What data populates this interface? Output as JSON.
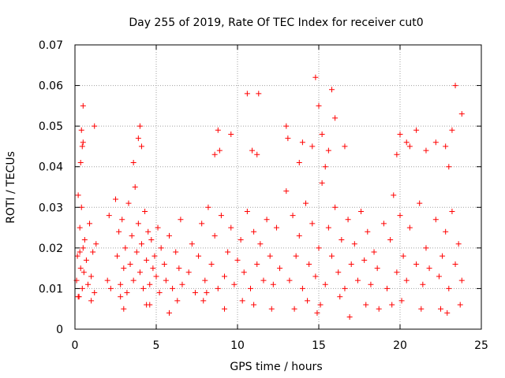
{
  "chart_data": {
    "type": "scatter",
    "title": "Day 255 of 2019, Rate Of TEC Index for receiver cut0",
    "xlabel": "GPS time / hours",
    "ylabel": "ROTI / TECUs",
    "xlim": [
      0,
      25
    ],
    "ylim": [
      0,
      0.07
    ],
    "x_ticks": [
      0,
      5,
      10,
      15,
      20,
      25
    ],
    "x_tick_labels": [
      "0",
      "5",
      "10",
      "15",
      "20",
      "25"
    ],
    "y_ticks": [
      0,
      0.01,
      0.02,
      0.03,
      0.04,
      0.05,
      0.06,
      0.07
    ],
    "y_tick_labels": [
      "0",
      "0.01",
      "0.02",
      "0.03",
      "0.04",
      "0.05",
      "0.06",
      "0.07"
    ],
    "grid": true,
    "marker": "plus",
    "color": "#ff0000",
    "series": [
      {
        "x": [
          0.1,
          0.15,
          0.2,
          0.25,
          0.3,
          0.35,
          0.4,
          0.45,
          0.5,
          0.55,
          0.6,
          0.7,
          0.8,
          0.9,
          1.0,
          1.1,
          1.2,
          1.3,
          2.0,
          2.1,
          2.2,
          2.5,
          2.6,
          2.7,
          2.8,
          2.9,
          3.0,
          3.1,
          3.2,
          3.3,
          3.4,
          3.5,
          3.6,
          3.7,
          3.8,
          3.9,
          4.0,
          4.1,
          4.2,
          4.3,
          4.4,
          4.5,
          4.6,
          4.7,
          4.8,
          4.9,
          5.0,
          5.1,
          5.2,
          5.3,
          5.5,
          5.6,
          5.8,
          6.0,
          6.2,
          6.4,
          6.5,
          6.6,
          7.0,
          7.2,
          7.4,
          7.6,
          7.8,
          8.0,
          8.2,
          8.4,
          8.6,
          8.8,
          9.0,
          9.2,
          9.4,
          9.6,
          9.8,
          10.0,
          10.2,
          10.4,
          10.6,
          10.8,
          11.0,
          11.2,
          11.4,
          11.6,
          11.8,
          12.0,
          12.2,
          12.4,
          12.6,
          13.0,
          13.2,
          13.4,
          13.6,
          13.8,
          14.0,
          14.2,
          14.4,
          14.6,
          14.8,
          15.0,
          15.2,
          15.4,
          15.6,
          15.8,
          16.0,
          16.2,
          16.4,
          16.6,
          16.8,
          17.0,
          17.2,
          17.4,
          17.6,
          17.8,
          18.0,
          18.2,
          18.4,
          18.6,
          19.0,
          19.2,
          19.4,
          19.6,
          19.8,
          20.0,
          20.2,
          20.4,
          20.6,
          21.0,
          21.2,
          21.4,
          21.6,
          21.8,
          22.2,
          22.4,
          22.6,
          22.8,
          23.0,
          23.2,
          23.4,
          23.6,
          23.8,
          0.3,
          0.4,
          0.5,
          0.35,
          0.45,
          1.2,
          3.6,
          3.9,
          4.0,
          4.1,
          8.6,
          8.8,
          8.9,
          9.6,
          10.6,
          10.9,
          11.2,
          11.3,
          13.0,
          13.1,
          13.8,
          14.0,
          14.6,
          14.8,
          15.0,
          15.2,
          15.4,
          15.6,
          15.8,
          16.0,
          16.6,
          19.8,
          20.0,
          20.4,
          20.6,
          21.0,
          21.6,
          22.2,
          22.8,
          23.0,
          23.2,
          23.4,
          23.8,
          0.5,
          3.0,
          4.4,
          5.8,
          7.9,
          9.2,
          11.0,
          13.5,
          14.3,
          15.1,
          16.9,
          18.7,
          19.5,
          21.3,
          22.9,
          23.7,
          0.2,
          1.0,
          2.8,
          4.6,
          6.3,
          8.1,
          10.3,
          12.1,
          14.9,
          16.3,
          17.9,
          20.1,
          22.5
        ],
        "y": [
          0.012,
          0.018,
          0.033,
          0.008,
          0.025,
          0.015,
          0.03,
          0.01,
          0.02,
          0.014,
          0.022,
          0.017,
          0.011,
          0.026,
          0.013,
          0.019,
          0.009,
          0.021,
          0.012,
          0.028,
          0.01,
          0.032,
          0.018,
          0.024,
          0.011,
          0.027,
          0.015,
          0.02,
          0.009,
          0.031,
          0.016,
          0.023,
          0.012,
          0.035,
          0.019,
          0.026,
          0.014,
          0.021,
          0.01,
          0.029,
          0.017,
          0.024,
          0.011,
          0.022,
          0.015,
          0.018,
          0.013,
          0.025,
          0.009,
          0.02,
          0.016,
          0.012,
          0.023,
          0.01,
          0.019,
          0.015,
          0.027,
          0.011,
          0.014,
          0.021,
          0.009,
          0.018,
          0.026,
          0.012,
          0.03,
          0.016,
          0.023,
          0.01,
          0.028,
          0.013,
          0.019,
          0.025,
          0.011,
          0.017,
          0.022,
          0.014,
          0.029,
          0.01,
          0.024,
          0.016,
          0.021,
          0.012,
          0.027,
          0.018,
          0.011,
          0.025,
          0.015,
          0.034,
          0.012,
          0.028,
          0.018,
          0.023,
          0.01,
          0.031,
          0.016,
          0.026,
          0.013,
          0.02,
          0.036,
          0.011,
          0.025,
          0.018,
          0.03,
          0.014,
          0.022,
          0.01,
          0.027,
          0.016,
          0.021,
          0.012,
          0.029,
          0.017,
          0.024,
          0.011,
          0.019,
          0.015,
          0.026,
          0.01,
          0.022,
          0.033,
          0.014,
          0.028,
          0.018,
          0.012,
          0.025,
          0.016,
          0.031,
          0.011,
          0.02,
          0.015,
          0.027,
          0.013,
          0.018,
          0.024,
          0.01,
          0.029,
          0.016,
          0.021,
          0.012,
          0.019,
          0.049,
          0.055,
          0.041,
          0.045,
          0.05,
          0.041,
          0.047,
          0.05,
          0.045,
          0.043,
          0.049,
          0.044,
          0.048,
          0.058,
          0.044,
          0.043,
          0.058,
          0.05,
          0.047,
          0.041,
          0.046,
          0.045,
          0.062,
          0.055,
          0.048,
          0.04,
          0.044,
          0.059,
          0.052,
          0.045,
          0.043,
          0.048,
          0.046,
          0.045,
          0.049,
          0.044,
          0.046,
          0.045,
          0.04,
          0.049,
          0.06,
          0.053,
          0.046,
          0.005,
          0.006,
          0.004,
          0.007,
          0.005,
          0.006,
          0.005,
          0.007,
          0.006,
          0.003,
          0.005,
          0.006,
          0.005,
          0.004,
          0.006,
          0.008,
          0.007,
          0.008,
          0.006,
          0.007,
          0.009,
          0.007,
          0.005,
          0.004,
          0.008,
          0.006,
          0.007,
          0.005
        ]
      }
    ]
  }
}
